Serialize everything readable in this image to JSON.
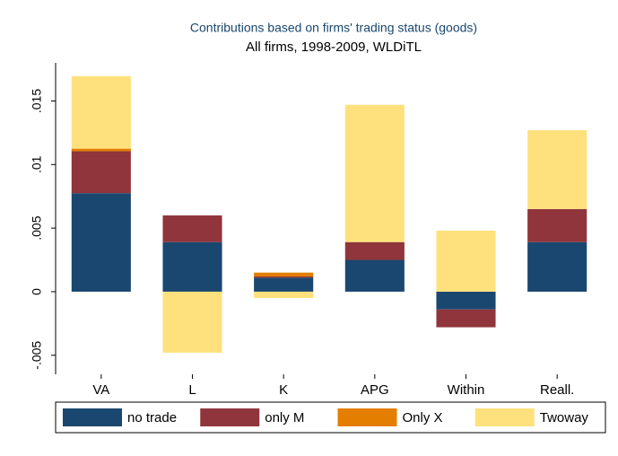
{
  "chart_data": {
    "type": "bar",
    "stacked": true,
    "title": "Contributions based on firms' trading status (goods)",
    "subtitle": "All firms, 1998-2009, WLDiTL",
    "categories": [
      "VA",
      "L",
      "K",
      "APG",
      "Within",
      "Reall."
    ],
    "series": [
      {
        "name": "no trade",
        "color": "#1a476f",
        "values": [
          0.00775,
          0.0039,
          0.0011,
          0.0025,
          -0.0014,
          0.0039
        ]
      },
      {
        "name": "only M",
        "color": "#90353b",
        "values": [
          0.0033,
          0.0021,
          0.0001,
          0.0014,
          -0.0014,
          0.0026
        ]
      },
      {
        "name": "Only X",
        "color": "#e37e00",
        "values": [
          0.0002,
          0,
          0.0003,
          0,
          0,
          0
        ]
      },
      {
        "name": "Twoway",
        "color": "#fee17d",
        "values": [
          0.0057,
          -0.0048,
          -0.0005,
          0.0108,
          0.0048,
          0.0062
        ]
      }
    ],
    "ylim": [
      -0.0065,
      0.018
    ],
    "yticks": [
      {
        "value": -0.005,
        "label": "-.005"
      },
      0,
      {
        "value": 0.005,
        "label": ".005"
      },
      {
        "value": 0.01,
        "label": ".01"
      },
      {
        "value": 0.015,
        "label": ".015"
      }
    ],
    "legend": "bottom"
  }
}
